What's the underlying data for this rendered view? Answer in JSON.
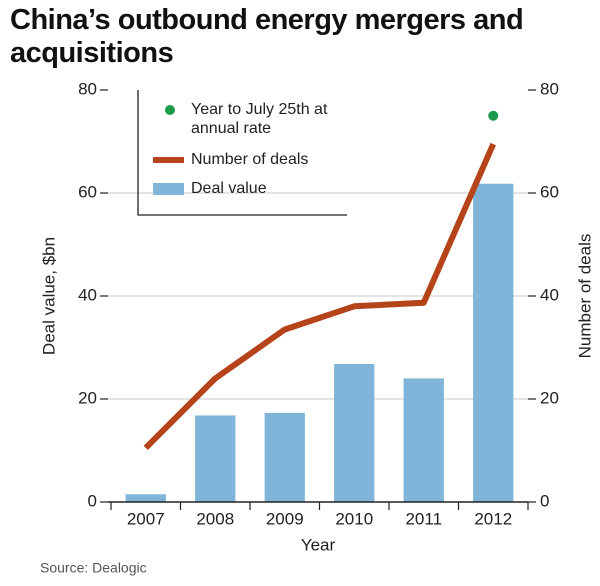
{
  "chart_data": {
    "type": "bar",
    "title": "China’s outbound energy mergers and acquisitions",
    "source": "Source: Dealogic",
    "x_label": "Year",
    "y_label": "Deal value, $bn",
    "y2_label": "Number of deals",
    "categories": [
      "2007",
      "2008",
      "2009",
      "2010",
      "2011",
      "2012"
    ],
    "series": [
      {
        "name": "Year to July 25th at annual rate",
        "color": "#1a9a4a",
        "type": "scatter",
        "axis": "y2",
        "values": [
          null,
          null,
          null,
          null,
          null,
          75
        ]
      },
      {
        "name": "Number of deals",
        "color": "#b5441a",
        "type": "line",
        "axis": "y2",
        "values": [
          10.5,
          24,
          33.5,
          38,
          38.7,
          69.5
        ]
      },
      {
        "name": "Deal value",
        "color": "#80b5d9",
        "type": "bar",
        "axis": "y",
        "values": [
          1.5,
          16.8,
          17.3,
          26.8,
          24,
          61.8
        ]
      }
    ],
    "ylim": [
      0,
      80
    ],
    "yticks": [
      0,
      20,
      40,
      60,
      80
    ],
    "y2lim": [
      0,
      80
    ],
    "y2ticks": [
      0,
      20,
      40,
      60,
      80
    ],
    "grid": true
  }
}
